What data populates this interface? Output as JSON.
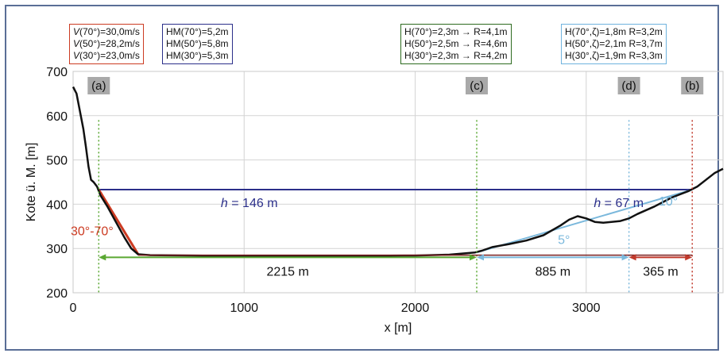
{
  "legend_boxes": {
    "v": [
      "V(70°)=30,0m/s",
      "V(50°)=28,2m/s",
      "V(30°)=23,0m/s"
    ],
    "hm": [
      "HM(70°)=5,2m",
      "HM(50°)=5,8m",
      "HM(30°)=5,3m"
    ],
    "h": [
      "H(70°)=2,3m → R=4,1m",
      "H(50°)=2,5m → R=4,6m",
      "H(30°)=2,3m → R=4,2m"
    ],
    "hz": [
      "H(70°,ζ)=1,8m  R=3,2m",
      "H(50°,ζ)=2,1m  R=3,7m",
      "H(30°,ζ)=1,9m  R=3,3m"
    ]
  },
  "colors": {
    "terrain": "#111111",
    "h_line": "#2b2f8a",
    "slide_slope": "#cc3b22",
    "green": "#5aa832",
    "light_blue": "#7ab8dc",
    "red_marker": "#c0392b",
    "dark_red": "#7a1f1f",
    "marker_box": "#a9a9a9",
    "grid": "#d4d4d4",
    "frame": "#5a6e96"
  },
  "chart_data": {
    "type": "line",
    "xlabel": "x [m]",
    "ylabel": "Kote ü. M. [m]",
    "xlim": [
      0,
      3800
    ],
    "ylim": [
      200,
      700
    ],
    "xticks": [
      0,
      1000,
      2000,
      3000
    ],
    "yticks": [
      200,
      300,
      400,
      500,
      600,
      700
    ],
    "grid": true,
    "series": [
      {
        "values": [
          [
            0,
            665
          ],
          [
            20,
            650
          ],
          [
            40,
            610
          ],
          [
            60,
            570
          ],
          [
            75,
            530
          ],
          [
            90,
            485
          ],
          [
            105,
            455
          ],
          [
            120,
            450
          ],
          [
            140,
            440
          ],
          [
            160,
            420
          ],
          [
            200,
            395
          ],
          [
            250,
            360
          ],
          [
            300,
            325
          ],
          [
            340,
            300
          ],
          [
            380,
            287
          ],
          [
            450,
            285
          ],
          [
            700,
            284
          ],
          [
            1000,
            283
          ],
          [
            1500,
            283
          ],
          [
            2000,
            284
          ],
          [
            2200,
            286
          ],
          [
            2350,
            291
          ],
          [
            2390,
            295
          ],
          [
            2450,
            303
          ],
          [
            2550,
            310
          ],
          [
            2650,
            318
          ],
          [
            2750,
            330
          ],
          [
            2850,
            352
          ],
          [
            2900,
            365
          ],
          [
            2950,
            373
          ],
          [
            3000,
            368
          ],
          [
            3050,
            360
          ],
          [
            3100,
            358
          ],
          [
            3200,
            362
          ],
          [
            3250,
            368
          ],
          [
            3300,
            378
          ],
          [
            3400,
            395
          ],
          [
            3500,
            415
          ],
          [
            3600,
            430
          ],
          [
            3650,
            440
          ],
          [
            3700,
            455
          ],
          [
            3750,
            470
          ],
          [
            3800,
            480
          ]
        ]
      }
    ],
    "markers": [
      {
        "label": "(a)",
        "x": 150
      },
      {
        "label": "(c)",
        "x": 2360
      },
      {
        "label": "(d)",
        "x": 3250
      },
      {
        "label": "(b)",
        "x": 3620
      }
    ],
    "annotations": {
      "h146": "= 146 m",
      "h67": "= 67 m",
      "h_symbol": "h",
      "slope_angle": "30°-70°",
      "angle5": "5°",
      "angle10": "10°",
      "dist1": "2215 m",
      "dist2": "885 m",
      "dist3": "365 m"
    }
  }
}
